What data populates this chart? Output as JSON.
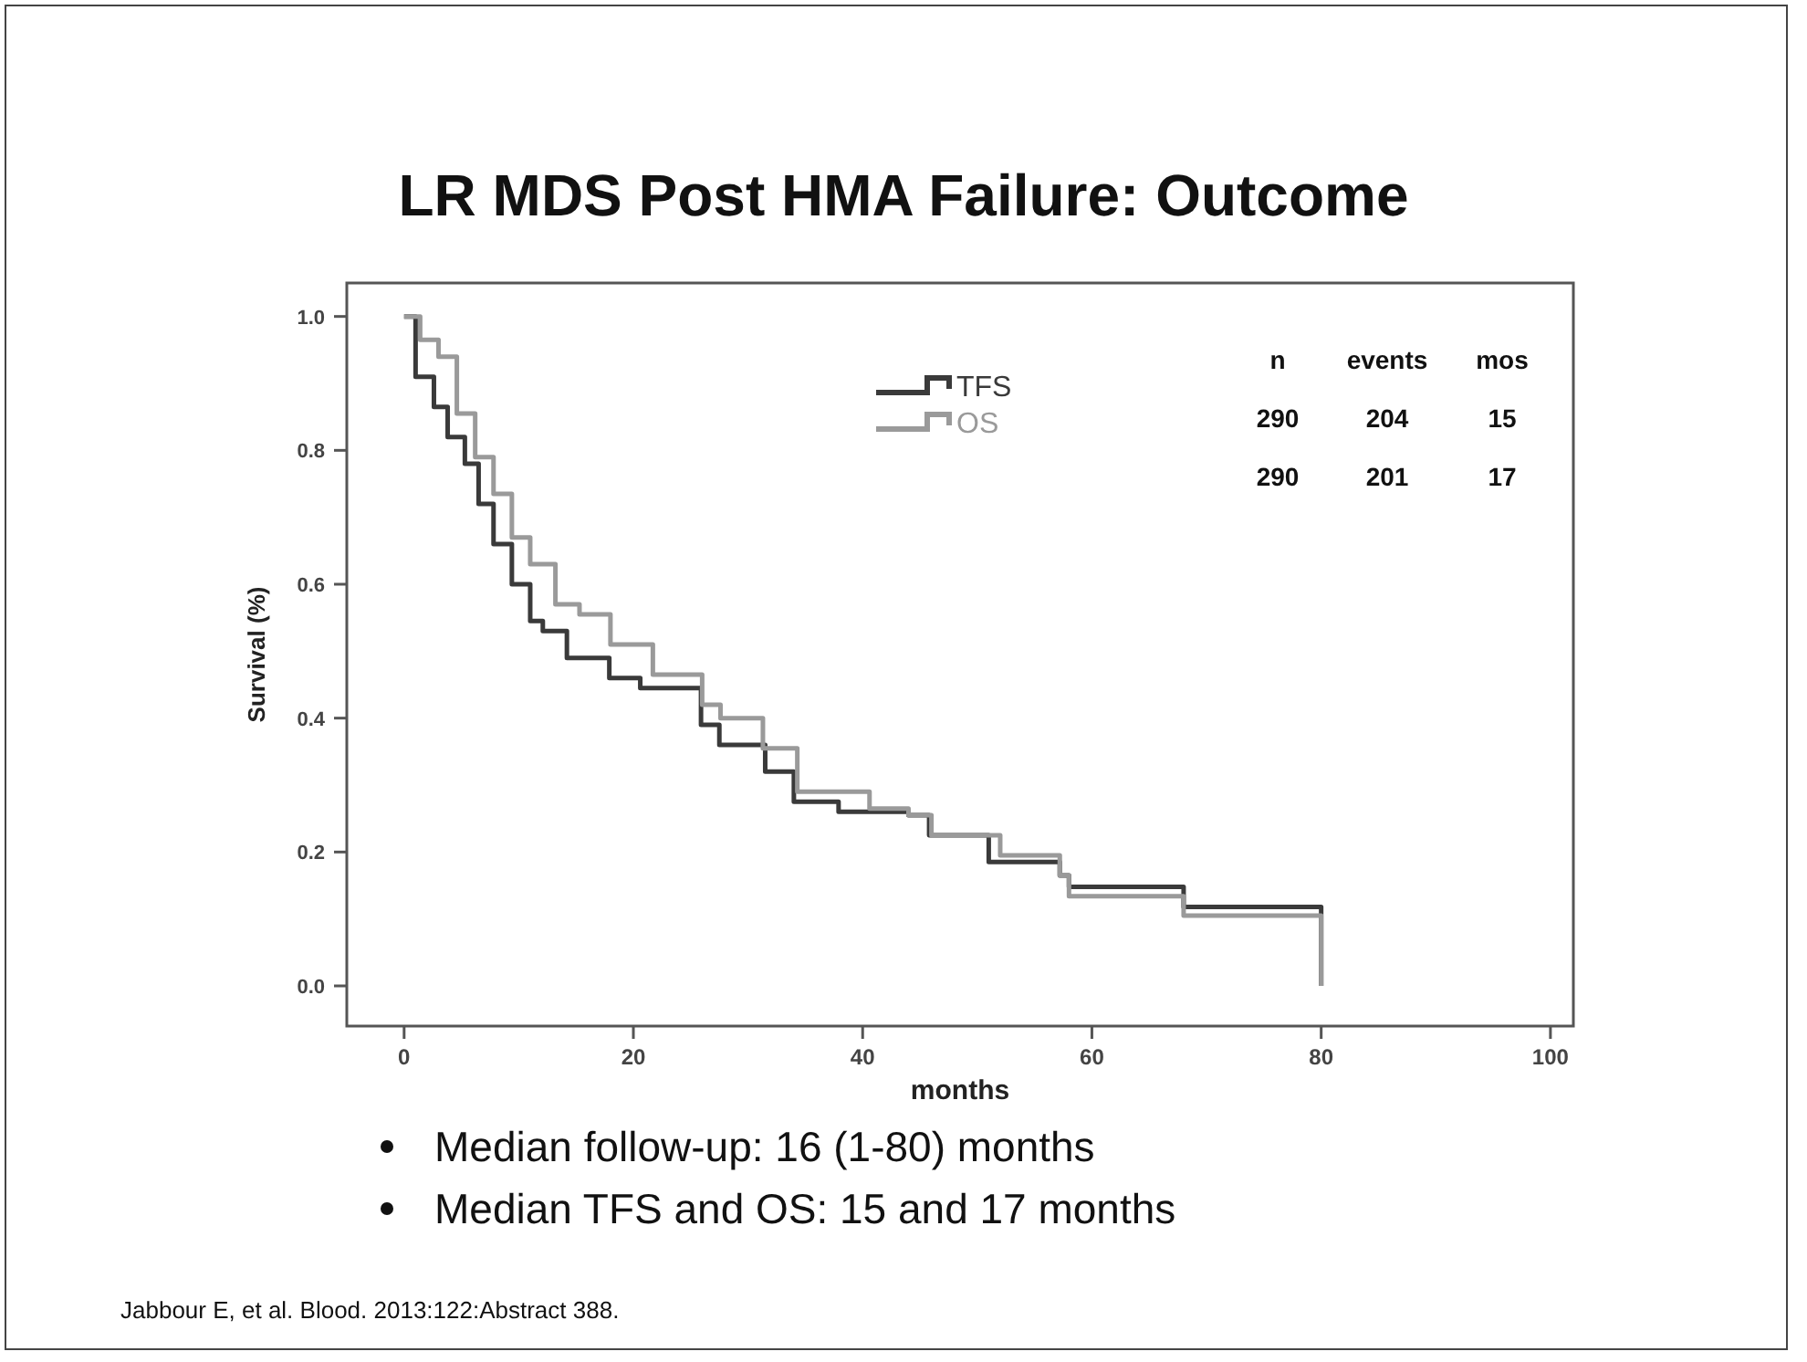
{
  "chart_data": {
    "type": "step",
    "title": "LR MDS Post HMA Failure: Outcome",
    "xlabel": "months",
    "ylabel": "Survival (%)",
    "xlim": [
      -5,
      102
    ],
    "ylim": [
      -0.06,
      1.05
    ],
    "xticks": [
      0,
      20,
      40,
      60,
      80,
      100
    ],
    "yticks": [
      {
        "value": 0,
        "label": "0.0"
      },
      {
        "value": 0.2,
        "label": "0.2"
      },
      {
        "value": 0.4,
        "label": "0.4"
      },
      {
        "value": 0.6,
        "label": "0.6"
      },
      {
        "value": 0.8,
        "label": "0.8"
      },
      {
        "value": 1,
        "label": "1.0"
      }
    ],
    "grid": false,
    "legend": "top",
    "marker": "none",
    "line_style": "solid",
    "series": [
      {
        "name": "TFS",
        "color": "#3a3a3a",
        "x": [
          0,
          1,
          2.6,
          3.8,
          5.3,
          6.5,
          7.8,
          9.4,
          11,
          12.1,
          14.2,
          17.9,
          20.6,
          25.9,
          27.5,
          31.5,
          34,
          37.9,
          44,
          45.8,
          51,
          57.2,
          58,
          68,
          80,
          80
        ],
        "values": [
          1,
          0.91,
          0.865,
          0.82,
          0.78,
          0.72,
          0.66,
          0.6,
          0.545,
          0.53,
          0.49,
          0.46,
          0.445,
          0.39,
          0.36,
          0.32,
          0.275,
          0.26,
          0.255,
          0.225,
          0.185,
          0.165,
          0.148,
          0.118,
          0.118,
          0
        ]
      },
      {
        "name": "OS",
        "color": "#9a9a9a",
        "x": [
          0,
          1.4,
          3,
          4.6,
          6.2,
          7.8,
          9.4,
          11,
          13.2,
          15.3,
          18,
          21.7,
          26,
          27.6,
          31.3,
          34.3,
          40.6,
          44,
          46,
          52,
          57.2,
          58,
          68,
          80,
          80
        ],
        "values": [
          1,
          0.965,
          0.94,
          0.855,
          0.79,
          0.735,
          0.67,
          0.63,
          0.57,
          0.555,
          0.51,
          0.465,
          0.42,
          0.4,
          0.355,
          0.29,
          0.265,
          0.255,
          0.225,
          0.195,
          0.165,
          0.134,
          0.105,
          0.105,
          0
        ]
      }
    ],
    "annotations": [
      "n     events     mos",
      "290     204       15",
      "290     201       17",
      "Median follow-up: 16 (1-80) months",
      "Median TFS and OS: 15 and 17 months",
      "Jabbour E, et al. Blood. 2013:122:Abstract 388."
    ]
  }
}
